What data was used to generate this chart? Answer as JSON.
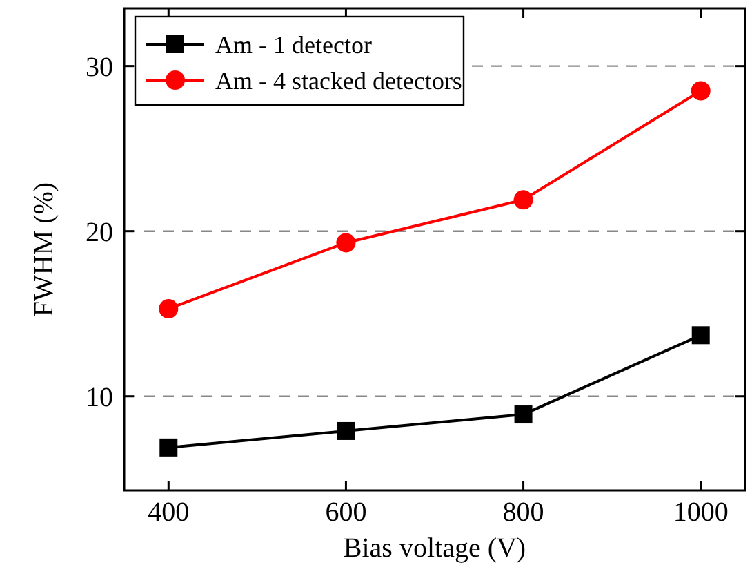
{
  "chart_data": {
    "type": "line",
    "xlabel": "Bias voltage (V)",
    "ylabel": "FWHM (%)",
    "x": [
      400,
      600,
      800,
      1000
    ],
    "series": [
      {
        "name": "Am - 1 detector",
        "color": "#000000",
        "marker": "square",
        "values": [
          6.9,
          7.9,
          8.9,
          13.7
        ]
      },
      {
        "name": "Am - 4 stacked detectors",
        "color": "#ff0000",
        "marker": "circle",
        "values": [
          15.3,
          19.3,
          21.9,
          28.5
        ]
      }
    ],
    "xlim": [
      350,
      1050
    ],
    "xticks": [
      400,
      600,
      800,
      1000
    ],
    "ylim": [
      4.3,
      33.5
    ],
    "yticks": [
      10,
      20,
      30
    ],
    "grid": "y",
    "legend": "top left",
    "line_style": "solid"
  }
}
